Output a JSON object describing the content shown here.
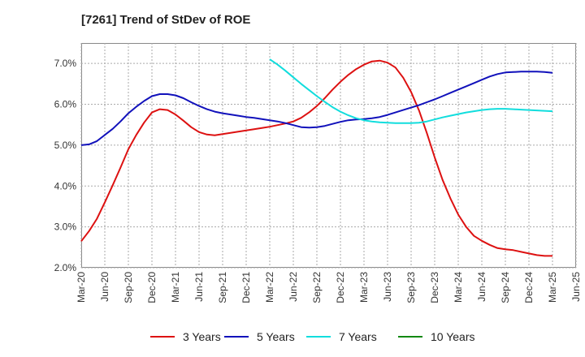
{
  "title": "[7261]  Trend of StDev of ROE",
  "chart_data": {
    "type": "line",
    "title": "[7261]  Trend of StDev of ROE",
    "xlabel": "",
    "ylabel": "",
    "ylim": [
      2.0,
      7.5
    ],
    "y_ticks": [
      2.0,
      3.0,
      4.0,
      5.0,
      6.0,
      7.0
    ],
    "y_tick_labels": [
      "2.0%",
      "3.0%",
      "4.0%",
      "5.0%",
      "6.0%",
      "7.0%"
    ],
    "x_tick_labels": [
      "Mar-20",
      "Jun-20",
      "Sep-20",
      "Dec-20",
      "Mar-21",
      "Jun-21",
      "Sep-21",
      "Dec-21",
      "Mar-22",
      "Jun-22",
      "Sep-22",
      "Dec-22",
      "Mar-23",
      "Jun-23",
      "Sep-23",
      "Dec-23",
      "Mar-24",
      "Jun-24",
      "Sep-24",
      "Dec-24",
      "Mar-25",
      "Jun-25"
    ],
    "grid": true,
    "legend_position": "bottom",
    "series": [
      {
        "name": "3 Years",
        "color": "#dd1111",
        "x": [
          "2020-03",
          "2020-04",
          "2020-05",
          "2020-06",
          "2020-07",
          "2020-08",
          "2020-09",
          "2020-10",
          "2020-11",
          "2020-12",
          "2021-01",
          "2021-02",
          "2021-03",
          "2021-04",
          "2021-05",
          "2021-06",
          "2021-07",
          "2021-08",
          "2021-09",
          "2021-10",
          "2021-11",
          "2021-12",
          "2022-01",
          "2022-02",
          "2022-03",
          "2022-04",
          "2022-05",
          "2022-06",
          "2022-07",
          "2022-08",
          "2022-09",
          "2022-10",
          "2022-11",
          "2022-12",
          "2023-01",
          "2023-02",
          "2023-03",
          "2023-04",
          "2023-05",
          "2023-06",
          "2023-07",
          "2023-08",
          "2023-09",
          "2023-10",
          "2023-11",
          "2023-12",
          "2024-01",
          "2024-02",
          "2024-03",
          "2024-04",
          "2024-05",
          "2024-06",
          "2024-07",
          "2024-08",
          "2024-09",
          "2024-10",
          "2024-11",
          "2024-12",
          "2025-01",
          "2025-02",
          "2025-03"
        ],
        "values": [
          2.65,
          2.9,
          3.2,
          3.6,
          4.02,
          4.45,
          4.9,
          5.25,
          5.55,
          5.8,
          5.88,
          5.86,
          5.75,
          5.6,
          5.44,
          5.32,
          5.26,
          5.24,
          5.27,
          5.3,
          5.33,
          5.36,
          5.39,
          5.42,
          5.45,
          5.49,
          5.53,
          5.58,
          5.67,
          5.8,
          5.96,
          6.15,
          6.36,
          6.55,
          6.72,
          6.86,
          6.97,
          7.05,
          7.07,
          7.02,
          6.9,
          6.65,
          6.3,
          5.85,
          5.3,
          4.7,
          4.15,
          3.7,
          3.3,
          3.0,
          2.78,
          2.66,
          2.56,
          2.48,
          2.45,
          2.43,
          2.39,
          2.35,
          2.31,
          2.29,
          2.29
        ]
      },
      {
        "name": "5 Years",
        "color": "#1111bb",
        "x": [
          "2020-03",
          "2020-04",
          "2020-05",
          "2020-06",
          "2020-07",
          "2020-08",
          "2020-09",
          "2020-10",
          "2020-11",
          "2020-12",
          "2021-01",
          "2021-02",
          "2021-03",
          "2021-04",
          "2021-05",
          "2021-06",
          "2021-07",
          "2021-08",
          "2021-09",
          "2021-10",
          "2021-11",
          "2021-12",
          "2022-01",
          "2022-02",
          "2022-03",
          "2022-04",
          "2022-05",
          "2022-06",
          "2022-07",
          "2022-08",
          "2022-09",
          "2022-10",
          "2022-11",
          "2022-12",
          "2023-01",
          "2023-02",
          "2023-03",
          "2023-04",
          "2023-05",
          "2023-06",
          "2023-07",
          "2023-08",
          "2023-09",
          "2023-10",
          "2023-11",
          "2023-12",
          "2024-01",
          "2024-02",
          "2024-03",
          "2024-04",
          "2024-05",
          "2024-06",
          "2024-07",
          "2024-08",
          "2024-09",
          "2024-10",
          "2024-11",
          "2024-12",
          "2025-01",
          "2025-02",
          "2025-03"
        ],
        "values": [
          5.0,
          5.02,
          5.1,
          5.25,
          5.4,
          5.58,
          5.78,
          5.94,
          6.08,
          6.2,
          6.25,
          6.25,
          6.22,
          6.15,
          6.05,
          5.96,
          5.88,
          5.82,
          5.78,
          5.75,
          5.72,
          5.69,
          5.67,
          5.64,
          5.61,
          5.58,
          5.54,
          5.49,
          5.44,
          5.43,
          5.44,
          5.47,
          5.52,
          5.57,
          5.61,
          5.63,
          5.64,
          5.66,
          5.69,
          5.74,
          5.8,
          5.86,
          5.92,
          5.98,
          6.05,
          6.12,
          6.2,
          6.28,
          6.36,
          6.44,
          6.52,
          6.6,
          6.68,
          6.74,
          6.78,
          6.79,
          6.8,
          6.8,
          6.8,
          6.79,
          6.77
        ]
      },
      {
        "name": "7 Years",
        "color": "#11dddd",
        "x": [
          "2022-03",
          "2022-04",
          "2022-05",
          "2022-06",
          "2022-07",
          "2022-08",
          "2022-09",
          "2022-10",
          "2022-11",
          "2022-12",
          "2023-01",
          "2023-02",
          "2023-03",
          "2023-04",
          "2023-05",
          "2023-06",
          "2023-07",
          "2023-08",
          "2023-09",
          "2023-10",
          "2023-11",
          "2023-12",
          "2024-01",
          "2024-02",
          "2024-03",
          "2024-04",
          "2024-05",
          "2024-06",
          "2024-07",
          "2024-08",
          "2024-09",
          "2024-10",
          "2024-11",
          "2024-12",
          "2025-01",
          "2025-02",
          "2025-03"
        ],
        "values": [
          7.1,
          6.97,
          6.82,
          6.66,
          6.5,
          6.35,
          6.2,
          6.06,
          5.93,
          5.82,
          5.73,
          5.66,
          5.61,
          5.58,
          5.56,
          5.55,
          5.54,
          5.54,
          5.54,
          5.55,
          5.58,
          5.63,
          5.68,
          5.72,
          5.76,
          5.8,
          5.83,
          5.86,
          5.88,
          5.89,
          5.89,
          5.88,
          5.87,
          5.86,
          5.85,
          5.84,
          5.83
        ]
      },
      {
        "name": "10 Years",
        "color": "#118811",
        "x": [],
        "values": []
      }
    ]
  }
}
